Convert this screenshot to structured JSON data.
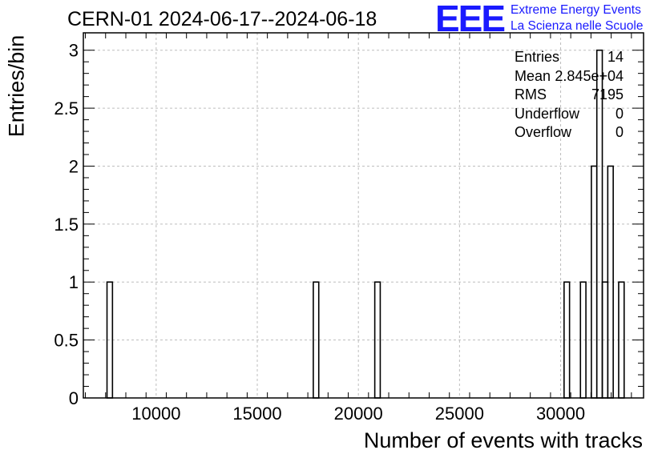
{
  "header": {
    "title": "CERN-01 2024-06-17--2024-06-18",
    "logo_mark": "EEE",
    "logo_line1": "Extreme Energy Events",
    "logo_line2": "La Scienza nelle Scuole"
  },
  "stats": [
    {
      "label": "Entries",
      "value": "14"
    },
    {
      "label": "Mean",
      "value": "2.845e+04"
    },
    {
      "label": "RMS",
      "value": "7195"
    },
    {
      "label": "Underflow",
      "value": "0"
    },
    {
      "label": "Overflow",
      "value": "0"
    }
  ],
  "colors": {
    "line": "#000000",
    "grid": "#bdbdbd",
    "logo": "#1a1aff"
  },
  "chart_data": {
    "type": "bar",
    "style": "step-histogram",
    "title": "CERN-01 2024-06-17--2024-06-18",
    "xlabel": "Number of events with tracks",
    "ylabel": "Entries/bin",
    "xlim": [
      6400,
      34100
    ],
    "ylim": [
      0,
      3.15
    ],
    "bin_width": 270,
    "x_ticks": [
      10000,
      15000,
      20000,
      25000,
      30000
    ],
    "x_tick_labels": [
      "10000",
      "15000",
      "20000",
      "25000",
      "30000"
    ],
    "y_ticks": [
      0,
      0.5,
      1,
      1.5,
      2,
      2.5,
      3
    ],
    "y_tick_labels": [
      "0",
      "0.5",
      "1",
      "1.5",
      "2",
      "2.5",
      "3"
    ],
    "grid": true,
    "legend": "stats box top-right",
    "bins": [
      {
        "x": 7570,
        "value": 1
      },
      {
        "x": 17770,
        "value": 1
      },
      {
        "x": 20810,
        "value": 1
      },
      {
        "x": 29900,
        "value": 0
      },
      {
        "x": 30170,
        "value": 1
      },
      {
        "x": 30980,
        "value": 1
      },
      {
        "x": 31520,
        "value": 2
      },
      {
        "x": 31790,
        "value": 3
      },
      {
        "x": 32060,
        "value": 1
      },
      {
        "x": 32330,
        "value": 2
      },
      {
        "x": 32600,
        "value": 0
      },
      {
        "x": 32870,
        "value": 1
      }
    ]
  }
}
